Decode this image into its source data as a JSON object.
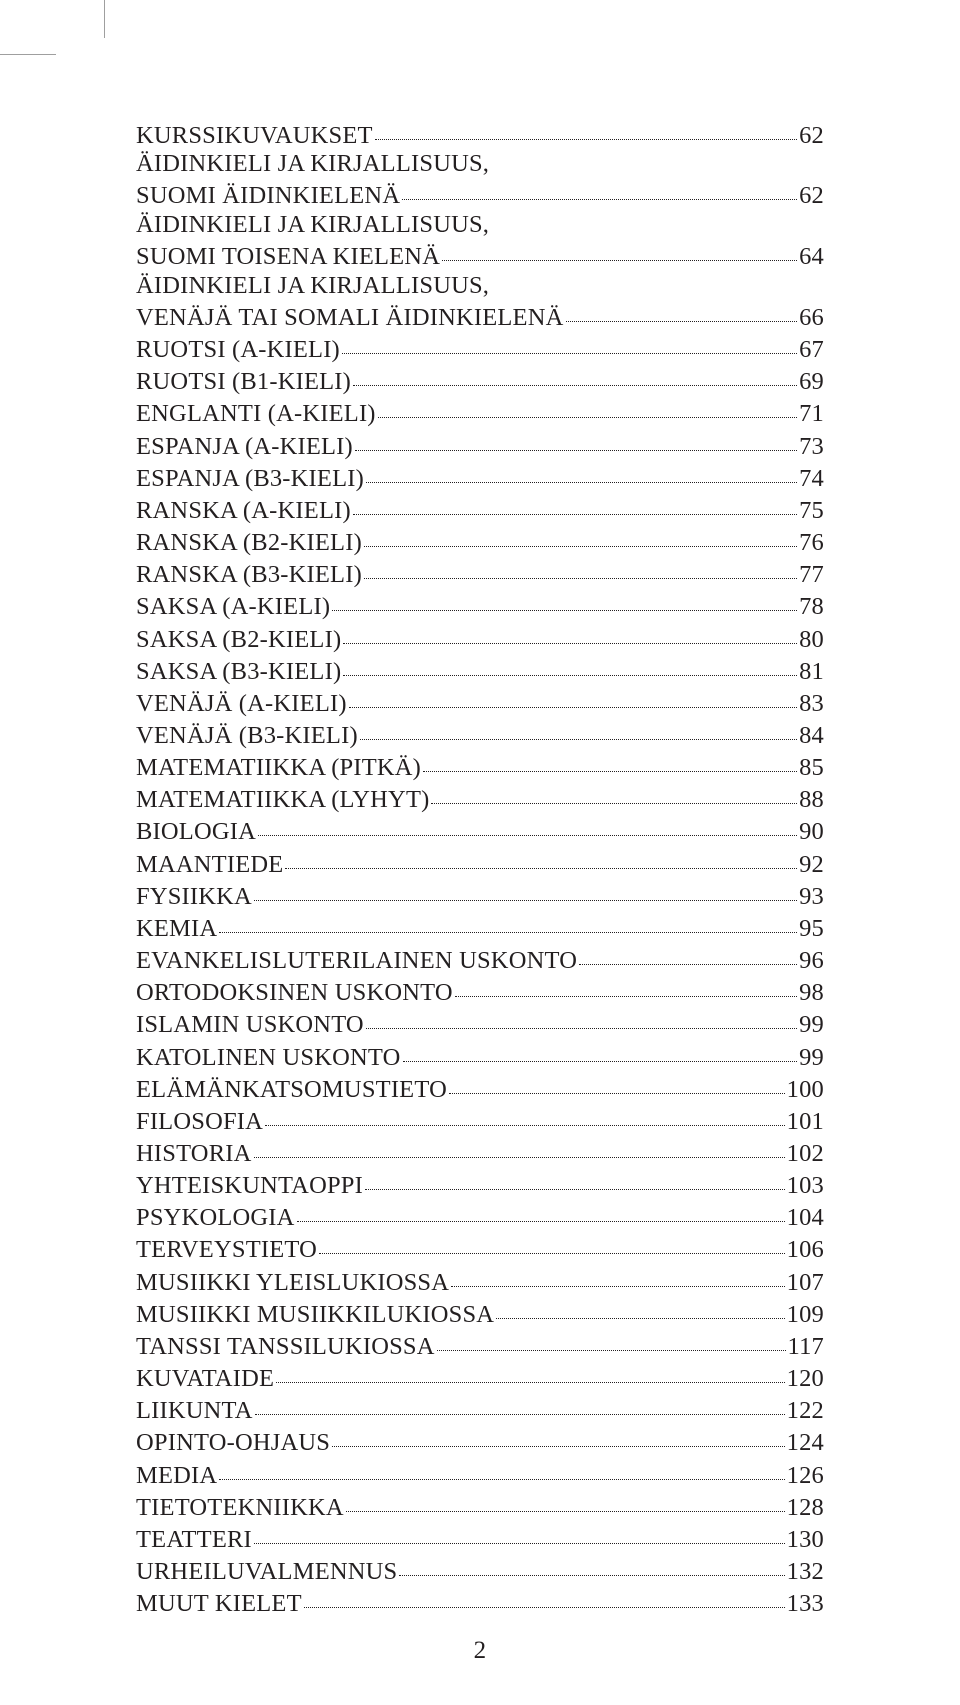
{
  "page_number": "2",
  "colors": {
    "text": "#231f20",
    "background": "#ffffff",
    "crop_mark": "#9f9f9f",
    "leader": "#231f20"
  },
  "typography": {
    "font_family": "Minion Pro / Garamond / Georgia serif",
    "body_fontsize_pt": 18,
    "line_height": 1.17
  },
  "toc": [
    {
      "label": "KURSSIKUVAUKSET",
      "page": "62",
      "wrap": false
    },
    {
      "label": "ÄIDINKIELI JA KIRJALLISUUS,",
      "label2": "SUOMI ÄIDINKIELENÄ",
      "page": "62",
      "wrap": true
    },
    {
      "label": "ÄIDINKIELI JA KIRJALLISUUS,",
      "label2": "SUOMI TOISENA KIELENÄ",
      "page": "64",
      "wrap": true
    },
    {
      "label": "ÄIDINKIELI JA KIRJALLISUUS,",
      "label2": "VENÄJÄ TAI SOMALI ÄIDINKIELENÄ",
      "page": "66",
      "wrap": true
    },
    {
      "label": "RUOTSI (A-KIELI)",
      "page": "67",
      "wrap": false
    },
    {
      "label": "RUOTSI (B1-KIELI)",
      "page": "69",
      "wrap": false
    },
    {
      "label": "ENGLANTI (A-KIELI)",
      "page": "71",
      "wrap": false
    },
    {
      "label": "ESPANJA (A-KIELI)",
      "page": "73",
      "wrap": false
    },
    {
      "label": "ESPANJA (B3-KIELI)",
      "page": "74",
      "wrap": false
    },
    {
      "label": "RANSKA (A-KIELI)",
      "page": "75",
      "wrap": false
    },
    {
      "label": "RANSKA (B2-KIELI)",
      "page": "76",
      "wrap": false
    },
    {
      "label": "RANSKA (B3-KIELI)",
      "page": "77",
      "wrap": false
    },
    {
      "label": "SAKSA (A-KIELI)",
      "page": "78",
      "wrap": false
    },
    {
      "label": "SAKSA (B2-KIELI)",
      "page": "80",
      "wrap": false
    },
    {
      "label": "SAKSA (B3-KIELI)",
      "page": "81",
      "wrap": false
    },
    {
      "label": "VENÄJÄ (A-KIELI)",
      "page": "83",
      "wrap": false
    },
    {
      "label": "VENÄJÄ (B3-KIELI)",
      "page": "84",
      "wrap": false
    },
    {
      "label": "MATEMATIIKKA (PITKÄ)",
      "page": "85",
      "wrap": false
    },
    {
      "label": "MATEMATIIKKA (LYHYT)",
      "page": "88",
      "wrap": false
    },
    {
      "label": "BIOLOGIA",
      "page": "90",
      "wrap": false
    },
    {
      "label": "MAANTIEDE",
      "page": "92",
      "wrap": false
    },
    {
      "label": "FYSIIKKA",
      "page": "93",
      "wrap": false
    },
    {
      "label": "KEMIA",
      "page": "95",
      "wrap": false
    },
    {
      "label": "EVANKELISLUTERILAINEN USKONTO",
      "page": "96",
      "wrap": false
    },
    {
      "label": "ORTODOKSINEN USKONTO",
      "page": "98",
      "wrap": false
    },
    {
      "label": "ISLAMIN USKONTO",
      "page": "99",
      "wrap": false
    },
    {
      "label": "KATOLINEN USKONTO",
      "page": "99",
      "wrap": false
    },
    {
      "label": "ELÄMÄNKATSOMUSTIETO",
      "page": "100",
      "wrap": false
    },
    {
      "label": "FILOSOFIA",
      "page": "101",
      "wrap": false
    },
    {
      "label": "HISTORIA",
      "page": "102",
      "wrap": false
    },
    {
      "label": "YHTEISKUNTAOPPI",
      "page": "103",
      "wrap": false
    },
    {
      "label": "PSYKOLOGIA",
      "page": "104",
      "wrap": false
    },
    {
      "label": "TERVEYSTIETO",
      "page": "106",
      "wrap": false
    },
    {
      "label": "MUSIIKKI YLEISLUKIOSSA",
      "page": "107",
      "wrap": false
    },
    {
      "label": "MUSIIKKI MUSIIKKILUKIOSSA",
      "page": "109",
      "wrap": false
    },
    {
      "label": "TANSSI TANSSILUKIOSSA",
      "page": "117",
      "wrap": false
    },
    {
      "label": "KUVATAIDE",
      "page": "120",
      "wrap": false
    },
    {
      "label": "LIIKUNTA",
      "page": "122",
      "wrap": false
    },
    {
      "label": "OPINTO-OHJAUS",
      "page": "124",
      "wrap": false
    },
    {
      "label": "MEDIA",
      "page": "126",
      "wrap": false
    },
    {
      "label": "TIETOTEKNIIKKA",
      "page": "128",
      "wrap": false
    },
    {
      "label": "TEATTERI",
      "page": "130",
      "wrap": false
    },
    {
      "label": "URHEILUVALMENNUS",
      "page": "132",
      "wrap": false
    },
    {
      "label": "MUUT KIELET",
      "page": "133",
      "wrap": false
    }
  ]
}
